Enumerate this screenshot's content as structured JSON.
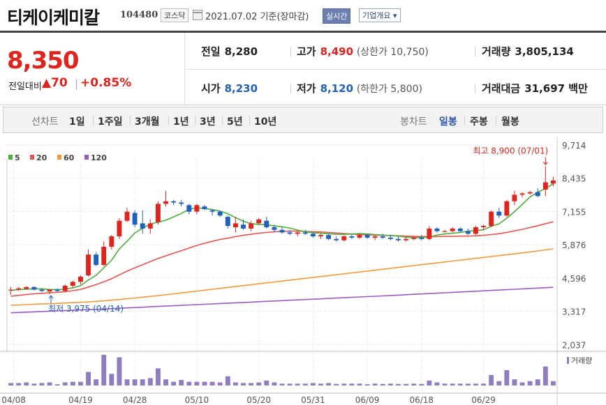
{
  "header": {
    "company": "티케이케미칼",
    "code": "104480",
    "market": "코스닥",
    "date": "2021.07.02  기준(장마감)",
    "realtime_label": "실시간",
    "overview_label": "기업개요 ▾"
  },
  "quote": {
    "price": "8,350",
    "change_label": "전일대비",
    "change_amount": "▲70",
    "change_pct": "+0.85%",
    "prev_close_label": "전일",
    "prev_close": "8,280",
    "high_label": "고가",
    "high": "8,490",
    "upper_limit": "(상한가 10,750)",
    "volume_label": "거래량",
    "volume": "3,805,134",
    "open_label": "시가",
    "open": "8,230",
    "low_label": "저가",
    "low": "8,120",
    "lower_limit": "(하한가 5,800)",
    "amount_label": "거래대금",
    "amount": "31,697 백만"
  },
  "tabs": {
    "line_chart_label": "선차트",
    "line_periods": [
      "1일",
      "1주일",
      "3개월",
      "1년",
      "3년",
      "5년",
      "10년"
    ],
    "candle_label": "봉차트",
    "candle_periods": [
      "일봉",
      "주봉",
      "월봉"
    ],
    "active_candle": "일봉"
  },
  "colors": {
    "up": "#e0241d",
    "down": "#1e5fbf",
    "ma5": "#4cae3c",
    "ma20": "#e8534f",
    "ma60": "#f39a3a",
    "ma120": "#9b59c6",
    "volume": "#8f7cc1"
  },
  "chart_data": {
    "type": "candlestick",
    "legend": [
      "5",
      "20",
      "60",
      "120"
    ],
    "y_ticks": [
      9714,
      8435,
      7155,
      5876,
      4596,
      3317,
      2037
    ],
    "x_labels": [
      "04/08",
      "04/19",
      "04/28",
      "05/10",
      "05/20",
      "05/31",
      "06/09",
      "06/18",
      "06/29"
    ],
    "annotations": {
      "high": "최고 8,900 (07/01)",
      "low": "최저 3,975 (04/14)"
    },
    "volume_label": "거래량",
    "candles": [
      [
        4150,
        4250,
        3950,
        4150
      ],
      [
        4150,
        4250,
        4100,
        4200
      ],
      [
        4180,
        4280,
        4150,
        4250
      ],
      [
        4250,
        4280,
        4120,
        4150
      ],
      [
        4150,
        4200,
        4050,
        4100
      ],
      [
        4080,
        4150,
        3975,
        4150
      ],
      [
        4150,
        4200,
        4050,
        4100
      ],
      [
        4100,
        4350,
        4050,
        4300
      ],
      [
        4300,
        4500,
        4200,
        4450
      ],
      [
        4450,
        4700,
        4350,
        4650
      ],
      [
        4700,
        5700,
        4650,
        5500
      ],
      [
        5500,
        5600,
        5050,
        5100
      ],
      [
        5100,
        6000,
        5050,
        5800
      ],
      [
        5800,
        6250,
        5700,
        6200
      ],
      [
        6200,
        6900,
        6100,
        6800
      ],
      [
        6800,
        7300,
        6750,
        7150
      ],
      [
        7100,
        7200,
        6550,
        6650
      ],
      [
        6700,
        7200,
        6300,
        6500
      ],
      [
        6500,
        6850,
        6300,
        6700
      ],
      [
        6750,
        7550,
        6650,
        7450
      ],
      [
        7450,
        7950,
        7350,
        7550
      ],
      [
        7550,
        7600,
        7400,
        7500
      ],
      [
        7500,
        7600,
        7350,
        7450
      ],
      [
        7400,
        7450,
        7050,
        7150
      ],
      [
        7150,
        7450,
        7050,
        7400
      ],
      [
        7350,
        7400,
        7200,
        7250
      ],
      [
        7200,
        7250,
        7000,
        7150
      ],
      [
        7150,
        7200,
        6950,
        7000
      ],
      [
        6950,
        7000,
        6500,
        6600
      ],
      [
        6550,
        6950,
        6350,
        6700
      ],
      [
        6650,
        6850,
        6450,
        6500
      ],
      [
        6500,
        6800,
        6400,
        6700
      ],
      [
        6700,
        6900,
        6650,
        6850
      ],
      [
        6800,
        6950,
        6500,
        6550
      ],
      [
        6550,
        6650,
        6350,
        6450
      ],
      [
        6450,
        6550,
        6300,
        6350
      ],
      [
        6350,
        6450,
        6250,
        6300
      ],
      [
        6300,
        6400,
        6200,
        6350
      ],
      [
        6350,
        6450,
        6250,
        6300
      ],
      [
        6300,
        6350,
        6150,
        6200
      ],
      [
        6200,
        6300,
        6100,
        6250
      ],
      [
        6250,
        6300,
        6050,
        6100
      ],
      [
        6100,
        6200,
        6000,
        6050
      ],
      [
        6050,
        6250,
        6000,
        6200
      ],
      [
        6200,
        6300,
        6100,
        6150
      ],
      [
        6150,
        6300,
        6100,
        6250
      ],
      [
        6250,
        6300,
        6100,
        6150
      ],
      [
        6150,
        6250,
        6050,
        6200
      ],
      [
        6200,
        6300,
        6100,
        6150
      ],
      [
        6150,
        6250,
        6050,
        6100
      ],
      [
        6100,
        6200,
        6000,
        6050
      ],
      [
        6050,
        6150,
        6000,
        6100
      ],
      [
        6100,
        6200,
        6050,
        6150
      ],
      [
        6150,
        6250,
        6050,
        6100
      ],
      [
        6100,
        6600,
        6050,
        6500
      ],
      [
        6500,
        6550,
        6350,
        6400
      ],
      [
        6400,
        6450,
        6350,
        6400
      ],
      [
        6400,
        6550,
        6350,
        6500
      ],
      [
        6500,
        6550,
        6350,
        6400
      ],
      [
        6400,
        6500,
        6250,
        6300
      ],
      [
        6300,
        6600,
        6250,
        6550
      ],
      [
        6550,
        6650,
        6450,
        6600
      ],
      [
        6600,
        7200,
        6550,
        7150
      ],
      [
        7150,
        7300,
        6900,
        7000
      ],
      [
        7000,
        7600,
        6950,
        7550
      ],
      [
        7550,
        7950,
        7400,
        7800
      ],
      [
        7800,
        7900,
        7700,
        7850
      ],
      [
        7850,
        7950,
        7800,
        7900
      ],
      [
        7900,
        8050,
        7700,
        7750
      ],
      [
        8000,
        8900,
        7750,
        8280
      ],
      [
        8230,
        8490,
        8120,
        8350
      ]
    ],
    "volumes": [
      0.08,
      0.08,
      0.1,
      0.06,
      0.08,
      0.1,
      0.04,
      0.1,
      0.12,
      0.12,
      0.44,
      0.2,
      1.0,
      0.38,
      0.92,
      0.2,
      0.2,
      0.2,
      0.24,
      0.56,
      0.2,
      0.12,
      0.18,
      0.12,
      0.12,
      0.12,
      0.12,
      0.1,
      0.3,
      0.1,
      0.08,
      0.08,
      0.1,
      0.16,
      0.1,
      0.06,
      0.06,
      0.06,
      0.06,
      0.08,
      0.06,
      0.08,
      0.05,
      0.06,
      0.06,
      0.06,
      0.04,
      0.06,
      0.05,
      0.06,
      0.05,
      0.05,
      0.06,
      0.05,
      0.16,
      0.1,
      0.06,
      0.06,
      0.06,
      0.06,
      0.06,
      0.06,
      0.34,
      0.14,
      0.5,
      0.2,
      0.1,
      0.14,
      0.2,
      0.62,
      0.14
    ],
    "ma5": [
      4120,
      4150,
      4170,
      4180,
      4180,
      4160,
      4150,
      4170,
      4220,
      4300,
      4520,
      4700,
      4990,
      5280,
      5720,
      6010,
      6330,
      6510,
      6680,
      6740,
      6820,
      6950,
      7080,
      7240,
      7300,
      7270,
      7230,
      7170,
      7070,
      6920,
      6780,
      6690,
      6660,
      6650,
      6600,
      6570,
      6520,
      6440,
      6380,
      6340,
      6320,
      6300,
      6280,
      6280,
      6290,
      6310,
      6290,
      6270,
      6250,
      6230,
      6210,
      6170,
      6150,
      6160,
      6170,
      6250,
      6290,
      6320,
      6350,
      6400,
      6420,
      6450,
      6590,
      6680,
      6900,
      7150,
      7430,
      7720,
      7900,
      8040,
      8230
    ],
    "ma20": [
      3900,
      3930,
      3960,
      3990,
      4010,
      4030,
      4050,
      4070,
      4110,
      4160,
      4250,
      4340,
      4450,
      4570,
      4720,
      4860,
      4990,
      5110,
      5230,
      5350,
      5450,
      5550,
      5650,
      5750,
      5850,
      5930,
      6010,
      6080,
      6130,
      6190,
      6240,
      6280,
      6320,
      6350,
      6380,
      6390,
      6400,
      6400,
      6390,
      6380,
      6370,
      6350,
      6330,
      6310,
      6290,
      6270,
      6260,
      6250,
      6240,
      6230,
      6220,
      6210,
      6200,
      6190,
      6190,
      6190,
      6200,
      6200,
      6210,
      6210,
      6220,
      6240,
      6270,
      6300,
      6350,
      6410,
      6470,
      6540,
      6610,
      6690,
      6760
    ],
    "ma60": [
      3550,
      3560,
      3575,
      3590,
      3600,
      3610,
      3620,
      3635,
      3650,
      3665,
      3680,
      3700,
      3720,
      3745,
      3770,
      3800,
      3830,
      3860,
      3890,
      3920,
      3955,
      3990,
      4025,
      4060,
      4095,
      4130,
      4165,
      4200,
      4235,
      4270,
      4305,
      4340,
      4375,
      4410,
      4445,
      4480,
      4515,
      4550,
      4585,
      4620,
      4655,
      4690,
      4725,
      4760,
      4795,
      4830,
      4865,
      4900,
      4935,
      4970,
      5005,
      5040,
      5075,
      5110,
      5145,
      5180,
      5215,
      5250,
      5285,
      5320,
      5355,
      5390,
      5425,
      5460,
      5495,
      5530,
      5565,
      5600,
      5640,
      5680,
      5720
    ],
    "ma120": [
      3260,
      3272,
      3284,
      3296,
      3308,
      3320,
      3332,
      3344,
      3356,
      3368,
      3380,
      3393,
      3406,
      3420,
      3434,
      3448,
      3462,
      3476,
      3490,
      3504,
      3518,
      3532,
      3546,
      3560,
      3574,
      3588,
      3602,
      3616,
      3630,
      3644,
      3658,
      3672,
      3686,
      3700,
      3714,
      3728,
      3742,
      3756,
      3770,
      3784,
      3798,
      3812,
      3826,
      3840,
      3854,
      3868,
      3882,
      3896,
      3910,
      3925,
      3940,
      3955,
      3970,
      3985,
      4000,
      4015,
      4030,
      4045,
      4060,
      4075,
      4090,
      4105,
      4120,
      4135,
      4150,
      4165,
      4180,
      4195,
      4210,
      4225,
      4240
    ]
  }
}
